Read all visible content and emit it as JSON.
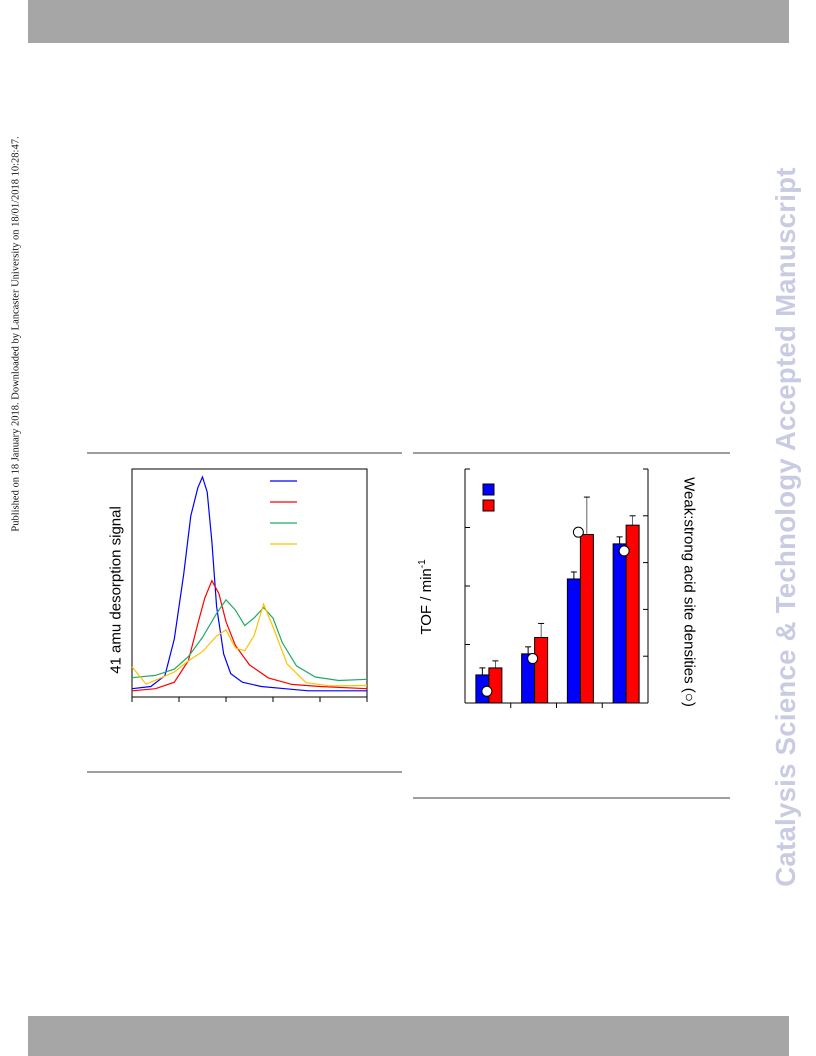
{
  "page": {
    "side_left": "Published on 18 January 2018. Downloaded by Lancaster University on 18/01/2018 10:28:47.",
    "side_right": "Catalysis Science & Technology Accepted Manuscript"
  },
  "colors": {
    "header_bar": "#a6a6a6",
    "watermark": "#c9cbe3",
    "blue": "#0000ff",
    "red": "#ff0000",
    "green": "#1faa64",
    "orange": "#ffc000"
  },
  "chart_data": [
    {
      "type": "line",
      "ylabel": "41 amu desorption signal",
      "xlabel": "",
      "x_ticks": 6,
      "legend": "top-right",
      "series": [
        {
          "color": "#0000ff",
          "x": [
            0,
            0.08,
            0.14,
            0.18,
            0.22,
            0.25,
            0.28,
            0.3,
            0.32,
            0.34,
            0.36,
            0.39,
            0.42,
            0.47,
            0.55,
            0.65,
            0.75,
            1.0
          ],
          "values": [
            0.02,
            0.03,
            0.08,
            0.25,
            0.55,
            0.82,
            0.95,
            1.0,
            0.93,
            0.7,
            0.4,
            0.18,
            0.09,
            0.05,
            0.03,
            0.02,
            0.01,
            0.01
          ]
        },
        {
          "color": "#ff0000",
          "x": [
            0,
            0.1,
            0.18,
            0.24,
            0.28,
            0.31,
            0.34,
            0.37,
            0.4,
            0.44,
            0.5,
            0.58,
            0.68,
            0.8,
            1.0
          ],
          "values": [
            0.01,
            0.02,
            0.05,
            0.15,
            0.32,
            0.44,
            0.52,
            0.46,
            0.33,
            0.22,
            0.13,
            0.07,
            0.04,
            0.03,
            0.02
          ]
        },
        {
          "color": "#1faa64",
          "x": [
            0,
            0.1,
            0.18,
            0.24,
            0.3,
            0.36,
            0.4,
            0.44,
            0.48,
            0.52,
            0.56,
            0.6,
            0.64,
            0.7,
            0.78,
            0.88,
            1.0
          ],
          "values": [
            0.06,
            0.08,
            0.12,
            0.18,
            0.26,
            0.36,
            0.42,
            0.38,
            0.32,
            0.36,
            0.4,
            0.34,
            0.22,
            0.12,
            0.08,
            0.07,
            0.07
          ]
        },
        {
          "color": "#ffc000",
          "x": [
            0,
            0.06,
            0.12,
            0.18,
            0.24,
            0.3,
            0.36,
            0.4,
            0.44,
            0.48,
            0.52,
            0.56,
            0.6,
            0.66,
            0.74,
            0.84,
            1.0
          ],
          "values": [
            0.12,
            0.05,
            0.08,
            0.1,
            0.14,
            0.18,
            0.26,
            0.3,
            0.22,
            0.2,
            0.26,
            0.4,
            0.3,
            0.14,
            0.06,
            0.04,
            0.03
          ]
        }
      ]
    },
    {
      "type": "bar",
      "ylabel": "TOF / min",
      "ylabel_sup": "-1",
      "y2label": "Weak:strong acid site densities (○)",
      "y_ticks": 5,
      "y2_ticks": 6,
      "legend": "top-left",
      "groups": 4,
      "series": [
        {
          "color": "#0000ff",
          "values": [
            0.12,
            0.21,
            0.53,
            0.68
          ],
          "errors": [
            0.03,
            0.03,
            0.03,
            0.03
          ]
        },
        {
          "color": "#ff0000",
          "values": [
            0.15,
            0.28,
            0.72,
            0.76
          ],
          "errors": [
            0.03,
            0.06,
            0.16,
            0.04
          ]
        }
      ],
      "markers": [
        0.05,
        0.19,
        0.73,
        0.65
      ],
      "ylim": [
        0,
        1
      ]
    }
  ]
}
